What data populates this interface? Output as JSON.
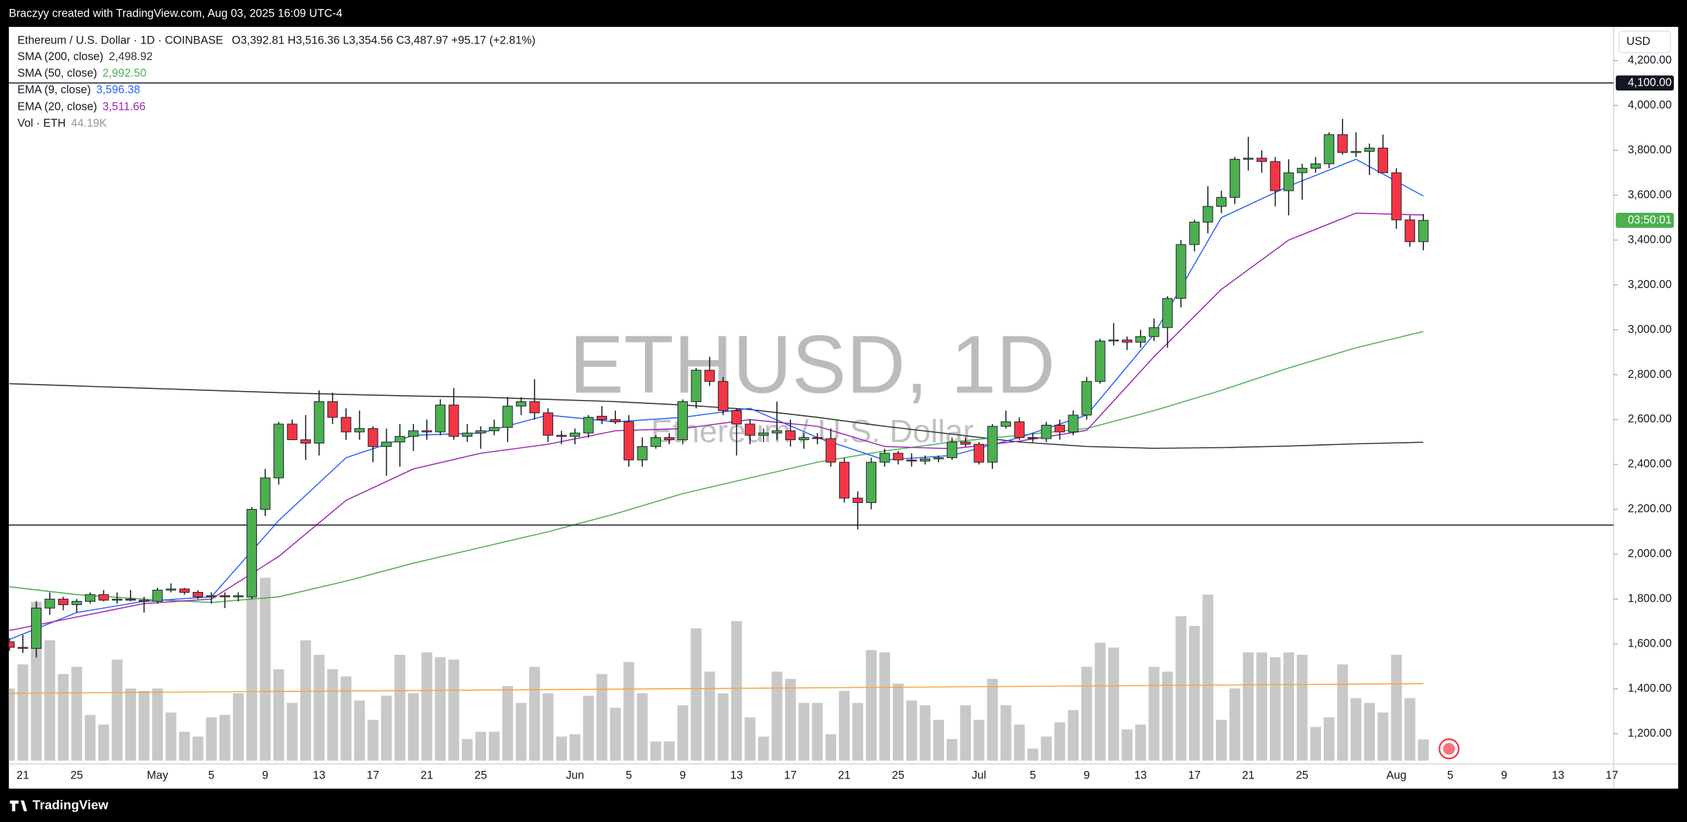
{
  "header": {
    "attribution": "Braczyy created with TradingView.com, Aug 03, 2025 16:09 UTC-4",
    "footer_logo": "TradingView"
  },
  "chart_data": {
    "type": "candlestick",
    "symbol_line": "Ethereum / U.S. Dollar · 1D · COINBASE",
    "ohlc_text": "O3,392.81  H3,516.36  L3,354.56  C3,487.97  +95.17 (+2.81%)",
    "watermark": "ETHUSD, 1D",
    "watermark_sub": "Ethereum / U.S. Dollar",
    "currency": "USD",
    "countdown": "03:50:01",
    "up_color": "#4caf50",
    "down_color": "#f23645",
    "categories": [
      null,
      "21",
      null,
      null,
      null,
      "25",
      null,
      null,
      null,
      null,
      null,
      "May",
      null,
      null,
      null,
      "5",
      null,
      null,
      null,
      "9",
      null,
      null,
      null,
      "13",
      null,
      null,
      null,
      "17",
      null,
      null,
      null,
      "21",
      null,
      null,
      null,
      "25",
      null,
      null,
      null,
      null,
      null,
      null,
      "Jun",
      null,
      null,
      null,
      "5",
      null,
      null,
      null,
      "9",
      null,
      null,
      null,
      "13",
      null,
      null,
      null,
      "17",
      null,
      null,
      null,
      "21",
      null,
      null,
      null,
      "25",
      null,
      null,
      null,
      null,
      null,
      "Jul",
      null,
      null,
      null,
      "5",
      null,
      null,
      null,
      "9",
      null,
      null,
      null,
      "13",
      null,
      null,
      null,
      "17",
      null,
      null,
      null,
      "21",
      null,
      null,
      null,
      "25",
      null,
      null,
      null,
      null,
      null,
      null,
      "Aug",
      null,
      null,
      null,
      "5",
      null,
      null,
      null,
      "9",
      null,
      null,
      null,
      "13",
      null,
      null,
      null,
      "17"
    ],
    "open": [
      1610,
      1585,
      1580,
      1760,
      1800,
      1775,
      1790,
      1820,
      1795,
      1800,
      1795,
      1790,
      1840,
      1845,
      1830,
      1810,
      1815,
      1810,
      1810,
      2200,
      2340,
      2580,
      2510,
      2495,
      2680,
      2610,
      2545,
      2560,
      2480,
      2500,
      2525,
      2550,
      2545,
      2665,
      2525,
      2540,
      2550,
      2565,
      2660,
      2680,
      2630,
      2530,
      2525,
      2540,
      2615,
      2600,
      2590,
      2420,
      2480,
      2520,
      2510,
      2680,
      2820,
      2770,
      2640,
      2580,
      2530,
      2540,
      2550,
      2510,
      2520,
      2515,
      2410,
      2250,
      2230,
      2410,
      2450,
      2420,
      2415,
      2425,
      2430,
      2500,
      2490,
      2410,
      2570,
      2590,
      2520,
      2515,
      2575,
      2545,
      2620,
      2770,
      2950,
      2955,
      2945,
      2970,
      3010,
      3140,
      3380,
      3480,
      3550,
      3590,
      3760,
      3765,
      3750,
      3620,
      3700,
      3720,
      3740,
      3870,
      3790,
      3795,
      3810,
      3700,
      3490,
      3392.81,
      null,
      null,
      null,
      null,
      null,
      null,
      null,
      null,
      null,
      null,
      null,
      null,
      null,
      null
    ],
    "high": [
      1625,
      1640,
      1790,
      1830,
      1810,
      1800,
      1830,
      1840,
      1830,
      1840,
      1810,
      1850,
      1870,
      1850,
      1840,
      1830,
      1830,
      1830,
      2210,
      2380,
      2590,
      2600,
      2620,
      2730,
      2720,
      2650,
      2640,
      2570,
      2560,
      2580,
      2580,
      2600,
      2690,
      2740,
      2580,
      2570,
      2600,
      2700,
      2700,
      2780,
      2650,
      2550,
      2560,
      2620,
      2660,
      2640,
      2620,
      2520,
      2530,
      2540,
      2690,
      2830,
      2880,
      2790,
      2650,
      2600,
      2560,
      2680,
      2600,
      2540,
      2540,
      2560,
      2430,
      2280,
      2430,
      2470,
      2460,
      2450,
      2440,
      2440,
      2520,
      2520,
      2500,
      2580,
      2640,
      2610,
      2540,
      2590,
      2600,
      2640,
      2790,
      2960,
      3030,
      2970,
      3000,
      3050,
      3150,
      3400,
      3490,
      3640,
      3620,
      3770,
      3860,
      3800,
      3770,
      3760,
      3740,
      3770,
      3880,
      3940,
      3880,
      3830,
      3870,
      3720,
      3510,
      3516.36,
      null,
      null,
      null,
      null,
      null,
      null,
      null,
      null,
      null,
      null,
      null,
      null,
      null,
      null
    ],
    "low": [
      1570,
      1560,
      1540,
      1730,
      1750,
      1740,
      1780,
      1790,
      1780,
      1790,
      1740,
      1780,
      1830,
      1820,
      1800,
      1780,
      1760,
      1790,
      1800,
      2170,
      2310,
      2510,
      2420,
      2440,
      2580,
      2510,
      2510,
      2410,
      2350,
      2390,
      2460,
      2510,
      2530,
      2510,
      2500,
      2470,
      2530,
      2500,
      2620,
      2600,
      2500,
      2490,
      2490,
      2520,
      2580,
      2580,
      2390,
      2390,
      2470,
      2490,
      2490,
      2650,
      2750,
      2620,
      2440,
      2490,
      2500,
      2510,
      2480,
      2470,
      2490,
      2390,
      2230,
      2110,
      2200,
      2390,
      2400,
      2390,
      2400,
      2410,
      2420,
      2480,
      2400,
      2380,
      2560,
      2510,
      2500,
      2500,
      2510,
      2530,
      2600,
      2760,
      2930,
      2910,
      2920,
      2950,
      2920,
      3100,
      3350,
      3430,
      3520,
      3560,
      3710,
      3700,
      3550,
      3510,
      3580,
      3700,
      3720,
      3780,
      3770,
      3690,
      3700,
      3450,
      3370,
      3354.56,
      null,
      null,
      null,
      null,
      null,
      null,
      null,
      null,
      null,
      null,
      null,
      null,
      null,
      null
    ],
    "close": [
      1585,
      1580,
      1760,
      1800,
      1775,
      1790,
      1820,
      1795,
      1800,
      1795,
      1790,
      1840,
      1845,
      1830,
      1810,
      1815,
      1810,
      1815,
      2200,
      2340,
      2580,
      2510,
      2495,
      2680,
      2610,
      2545,
      2560,
      2480,
      2500,
      2525,
      2550,
      2545,
      2665,
      2525,
      2540,
      2550,
      2565,
      2660,
      2680,
      2630,
      2530,
      2525,
      2540,
      2610,
      2600,
      2590,
      2420,
      2480,
      2520,
      2510,
      2680,
      2820,
      2770,
      2640,
      2580,
      2530,
      2540,
      2550,
      2510,
      2520,
      2515,
      2410,
      2250,
      2230,
      2410,
      2450,
      2420,
      2415,
      2425,
      2430,
      2500,
      2490,
      2410,
      2570,
      2590,
      2520,
      2515,
      2575,
      2545,
      2620,
      2770,
      2950,
      2955,
      2945,
      2970,
      3010,
      3140,
      3380,
      3480,
      3550,
      3590,
      3760,
      3765,
      3750,
      3620,
      3700,
      3720,
      3740,
      3870,
      3790,
      3795,
      3810,
      3700,
      3490,
      3392.81,
      3487.97,
      null,
      null,
      null,
      null,
      null,
      null,
      null,
      null,
      null,
      null,
      null,
      null,
      null,
      null
    ],
    "series": [
      {
        "name": "SMA (200, close)",
        "last_label": "2,498.92",
        "color": "#333333",
        "x": [
          0,
          5,
          10,
          15,
          20,
          25,
          30,
          35,
          40,
          45,
          50,
          55,
          60,
          65,
          70,
          75,
          80,
          85,
          90,
          95,
          100,
          105
        ],
        "values": [
          2760,
          2750,
          2740,
          2730,
          2720,
          2712,
          2705,
          2700,
          2690,
          2680,
          2665,
          2645,
          2610,
          2570,
          2535,
          2500,
          2480,
          2472,
          2475,
          2482,
          2492,
          2498.92
        ]
      },
      {
        "name": "SMA (50, close)",
        "last_label": "2,992.50",
        "color": "#4caf50",
        "x": [
          0,
          5,
          10,
          15,
          20,
          25,
          30,
          35,
          40,
          45,
          50,
          55,
          60,
          65,
          70,
          75,
          80,
          85,
          90,
          95,
          100,
          105
        ],
        "values": [
          1855,
          1820,
          1800,
          1785,
          1810,
          1880,
          1960,
          2030,
          2100,
          2180,
          2270,
          2340,
          2410,
          2460,
          2500,
          2530,
          2560,
          2640,
          2730,
          2830,
          2920,
          2992.5
        ]
      },
      {
        "name": "EMA (9, close)",
        "last_label": "3,596.38",
        "color": "#2962ff",
        "x": [
          0,
          5,
          10,
          15,
          20,
          25,
          30,
          35,
          40,
          45,
          50,
          55,
          60,
          65,
          70,
          75,
          80,
          85,
          90,
          95,
          100,
          105
        ],
        "values": [
          1620,
          1740,
          1790,
          1810,
          2150,
          2430,
          2530,
          2540,
          2620,
          2590,
          2610,
          2650,
          2520,
          2420,
          2440,
          2520,
          2620,
          2980,
          3500,
          3640,
          3760,
          3596.38
        ]
      },
      {
        "name": "EMA (20, close)",
        "last_label": "3,511.66",
        "color": "#9c27b0",
        "x": [
          0,
          5,
          10,
          15,
          20,
          25,
          30,
          35,
          40,
          45,
          50,
          55,
          60,
          65,
          70,
          75,
          80,
          85,
          90,
          95,
          100,
          105
        ],
        "values": [
          1660,
          1720,
          1780,
          1800,
          1990,
          2240,
          2380,
          2450,
          2490,
          2550,
          2560,
          2600,
          2570,
          2480,
          2470,
          2504,
          2552,
          2880,
          3180,
          3400,
          3520,
          3511.66
        ]
      }
    ],
    "volume": {
      "name": "Vol · ETH",
      "last_label": "44.19K",
      "color": "#c8c8c8",
      "values": [
        150,
        200,
        330,
        250,
        180,
        195,
        95,
        75,
        210,
        150,
        145,
        150,
        100,
        60,
        50,
        90,
        95,
        140,
        370,
        380,
        190,
        120,
        250,
        220,
        190,
        175,
        125,
        85,
        135,
        220,
        140,
        225,
        215,
        210,
        45,
        60,
        60,
        155,
        120,
        195,
        140,
        50,
        55,
        135,
        180,
        110,
        205,
        140,
        40,
        40,
        115,
        275,
        185,
        140,
        290,
        90,
        50,
        185,
        170,
        120,
        120,
        55,
        145,
        120,
        230,
        225,
        160,
        125,
        115,
        85,
        45,
        115,
        85,
        170,
        115,
        75,
        25,
        50,
        80,
        105,
        195,
        245,
        235,
        65,
        75,
        195,
        185,
        300,
        280,
        345,
        85,
        150,
        225,
        225,
        215,
        225,
        220,
        70,
        90,
        200,
        130,
        120,
        100,
        220,
        130,
        44.19,
        null,
        null,
        null,
        null,
        null,
        null,
        null,
        null,
        null,
        null,
        null,
        null,
        null,
        null
      ],
      "ma": {
        "color": "#f7a440",
        "x": [
          0,
          105
        ],
        "values": [
          140,
          160
        ]
      }
    },
    "ylim": [
      1065.5,
      4350
    ],
    "yticks": [
      {
        "value": 1200,
        "label": "1,200.00"
      },
      {
        "value": 1400,
        "label": "1,400.00"
      },
      {
        "value": 1600,
        "label": "1,600.00"
      },
      {
        "value": 1800,
        "label": "1,800.00"
      },
      {
        "value": 2000,
        "label": "2,000.00"
      },
      {
        "value": 2200,
        "label": "2,200.00"
      },
      {
        "value": 2400,
        "label": "2,400.00"
      },
      {
        "value": 2600,
        "label": "2,600.00"
      },
      {
        "value": 2800,
        "label": "2,800.00"
      },
      {
        "value": 3000,
        "label": "3,000.00"
      },
      {
        "value": 3200,
        "label": "3,200.00"
      },
      {
        "value": 3400,
        "label": "3,400.00"
      },
      {
        "value": 3600,
        "label": "3,600.00"
      },
      {
        "value": 3800,
        "label": "3,800.00"
      },
      {
        "value": 4000,
        "label": "4,000.00"
      },
      {
        "value": 4200,
        "label": "4,200.00"
      }
    ],
    "hlines": [
      {
        "value": 4100,
        "label": "4,100.00"
      },
      2130
    ],
    "grid": false
  }
}
